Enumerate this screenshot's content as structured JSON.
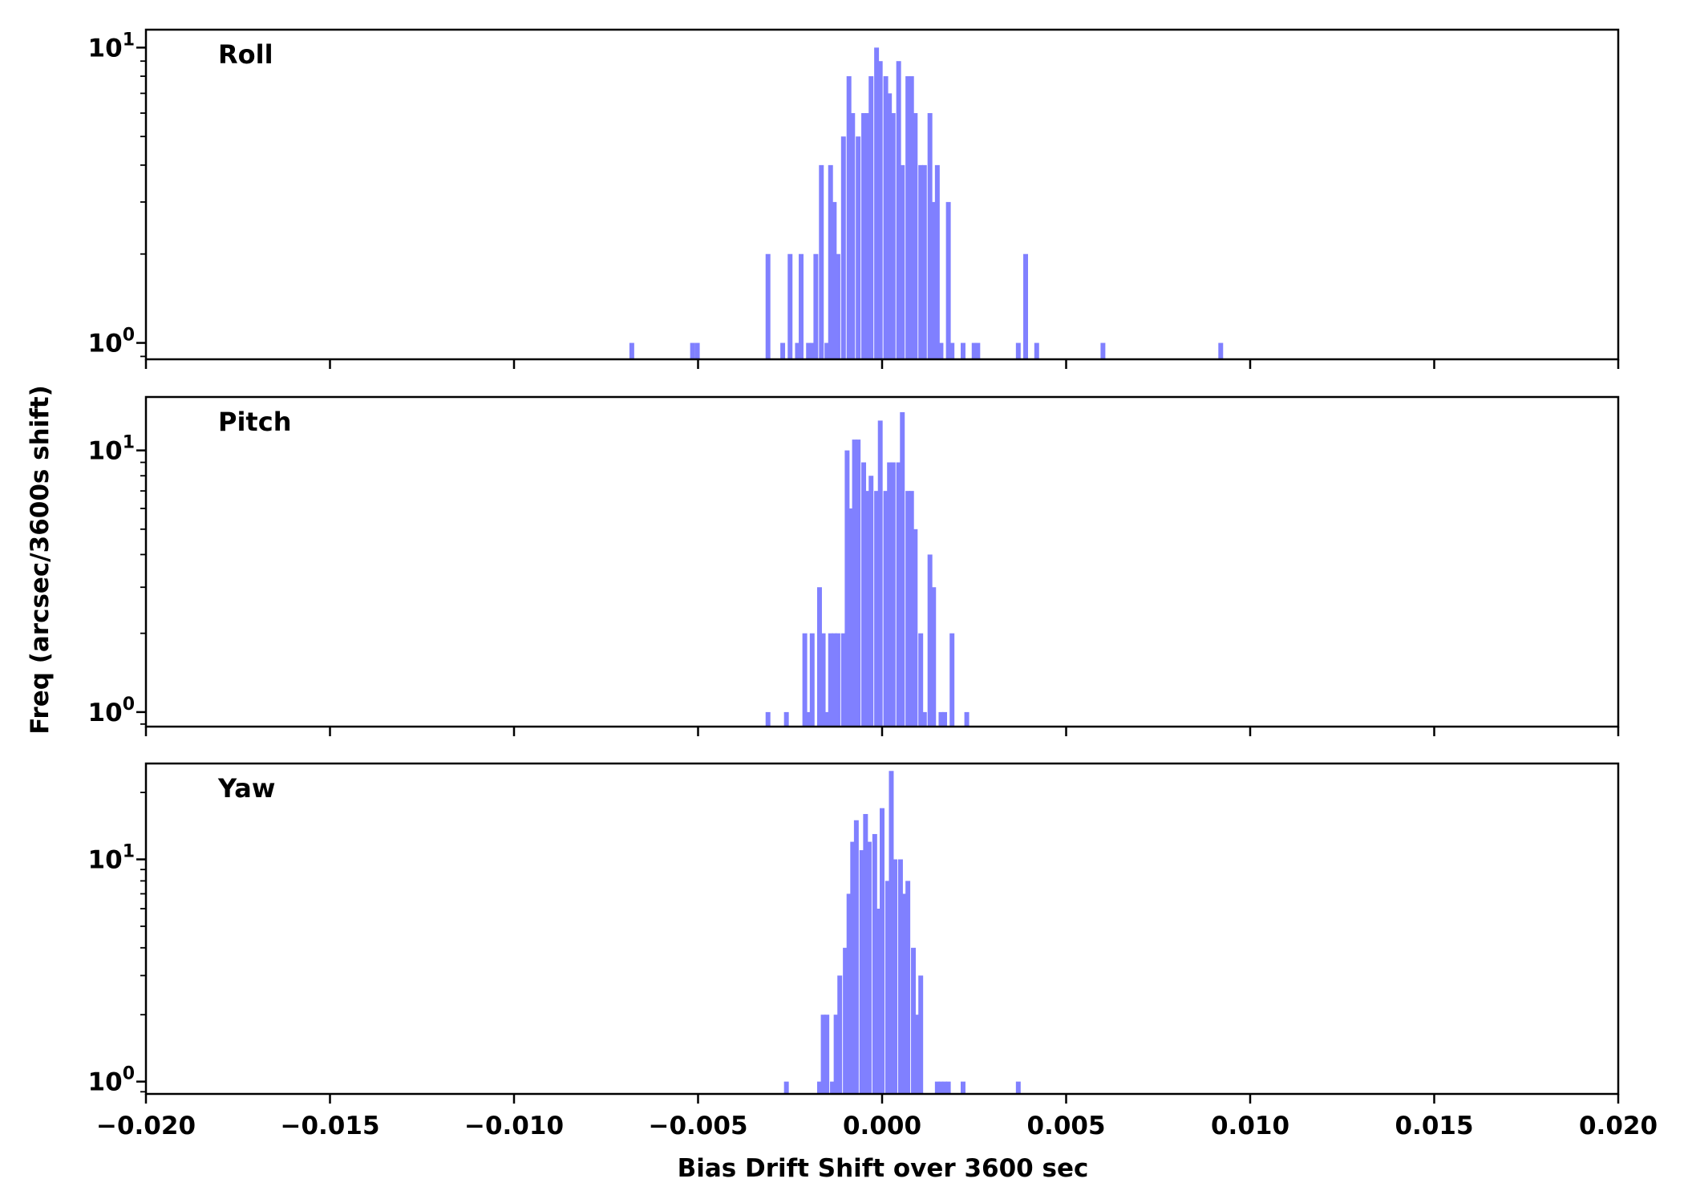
{
  "chart_data": {
    "type": "histogram",
    "xlabel": "Bias Drift Shift over 3600 sec",
    "ylabel": "Freq (arcsec/3600s shift)",
    "xlim": [
      -0.02,
      0.02
    ],
    "xticks": [
      -0.02,
      -0.015,
      -0.01,
      -0.005,
      0.0,
      0.005,
      0.01,
      0.015,
      0.02
    ],
    "xtick_labels": [
      "−0.020",
      "−0.015",
      "−0.010",
      "−0.005",
      "0.000",
      "0.005",
      "0.010",
      "0.015",
      "0.020"
    ],
    "yscale": "log",
    "bin_width": 0.00013,
    "bar_color": "#8080ff",
    "panels": [
      {
        "label": "Roll",
        "ylim": [
          0.88,
          11.5
        ],
        "yticks": [
          {
            "value": 1,
            "base": "10",
            "exp": "0"
          },
          {
            "value": 10,
            "base": "10",
            "exp": "1"
          }
        ],
        "bins": [
          {
            "x": -0.0068,
            "count": 1
          },
          {
            "x": -0.00515,
            "count": 1
          },
          {
            "x": -0.00502,
            "count": 1
          },
          {
            "x": -0.0031,
            "count": 2
          },
          {
            "x": -0.0027,
            "count": 1
          },
          {
            "x": -0.0025,
            "count": 2
          },
          {
            "x": -0.0023,
            "count": 1
          },
          {
            "x": -0.0022,
            "count": 2
          },
          {
            "x": -0.002,
            "count": 1
          },
          {
            "x": -0.0019,
            "count": 1
          },
          {
            "x": -0.0018,
            "count": 2
          },
          {
            "x": -0.00165,
            "count": 4
          },
          {
            "x": -0.0015,
            "count": 1
          },
          {
            "x": -0.0014,
            "count": 4
          },
          {
            "x": -0.0013,
            "count": 3
          },
          {
            "x": -0.0012,
            "count": 2
          },
          {
            "x": -0.00105,
            "count": 5
          },
          {
            "x": -0.0009,
            "count": 8
          },
          {
            "x": -0.0008,
            "count": 6
          },
          {
            "x": -0.00065,
            "count": 5
          },
          {
            "x": -0.0005,
            "count": 6
          },
          {
            "x": -0.0004,
            "count": 6
          },
          {
            "x": -0.0003,
            "count": 8
          },
          {
            "x": -0.00015,
            "count": 10
          },
          {
            "x": -5e-05,
            "count": 9
          },
          {
            "x": 0.0001,
            "count": 8
          },
          {
            "x": 0.0002,
            "count": 7
          },
          {
            "x": 0.0003,
            "count": 6
          },
          {
            "x": 0.00045,
            "count": 9
          },
          {
            "x": 0.00055,
            "count": 4
          },
          {
            "x": 0.0007,
            "count": 8
          },
          {
            "x": 0.0008,
            "count": 8
          },
          {
            "x": 0.0009,
            "count": 6
          },
          {
            "x": 0.00105,
            "count": 4
          },
          {
            "x": 0.00115,
            "count": 4
          },
          {
            "x": 0.0013,
            "count": 6
          },
          {
            "x": 0.0014,
            "count": 3
          },
          {
            "x": 0.0015,
            "count": 4
          },
          {
            "x": 0.0016,
            "count": 1
          },
          {
            "x": 0.0018,
            "count": 3
          },
          {
            "x": 0.0019,
            "count": 1
          },
          {
            "x": 0.0022,
            "count": 1
          },
          {
            "x": 0.0025,
            "count": 1
          },
          {
            "x": 0.0026,
            "count": 1
          },
          {
            "x": 0.0037,
            "count": 1
          },
          {
            "x": 0.0039,
            "count": 2
          },
          {
            "x": 0.0042,
            "count": 1
          },
          {
            "x": 0.006,
            "count": 1
          },
          {
            "x": 0.0092,
            "count": 1
          }
        ]
      },
      {
        "label": "Pitch",
        "ylim": [
          0.88,
          16
        ],
        "yticks": [
          {
            "value": 1,
            "base": "10",
            "exp": "0"
          },
          {
            "value": 10,
            "base": "10",
            "exp": "1"
          }
        ],
        "bins": [
          {
            "x": -0.0031,
            "count": 1
          },
          {
            "x": -0.0026,
            "count": 1
          },
          {
            "x": -0.0021,
            "count": 2
          },
          {
            "x": -0.002,
            "count": 1
          },
          {
            "x": -0.0019,
            "count": 2
          },
          {
            "x": -0.0017,
            "count": 3
          },
          {
            "x": -0.0016,
            "count": 2
          },
          {
            "x": -0.0015,
            "count": 1
          },
          {
            "x": -0.0014,
            "count": 2
          },
          {
            "x": -0.0013,
            "count": 2
          },
          {
            "x": -0.0012,
            "count": 2
          },
          {
            "x": -0.00105,
            "count": 2
          },
          {
            "x": -0.00095,
            "count": 10
          },
          {
            "x": -0.00085,
            "count": 6
          },
          {
            "x": -0.00075,
            "count": 11
          },
          {
            "x": -0.00065,
            "count": 11
          },
          {
            "x": -0.0005,
            "count": 9
          },
          {
            "x": -0.0004,
            "count": 7
          },
          {
            "x": -0.0003,
            "count": 8
          },
          {
            "x": -0.00015,
            "count": 7
          },
          {
            "x": -5e-05,
            "count": 13
          },
          {
            "x": 0.0001,
            "count": 7
          },
          {
            "x": 0.0002,
            "count": 9
          },
          {
            "x": 0.0003,
            "count": 9
          },
          {
            "x": 0.00045,
            "count": 9
          },
          {
            "x": 0.00055,
            "count": 14
          },
          {
            "x": 0.0007,
            "count": 7
          },
          {
            "x": 0.0008,
            "count": 7
          },
          {
            "x": 0.0009,
            "count": 5
          },
          {
            "x": 0.00105,
            "count": 2
          },
          {
            "x": 0.00115,
            "count": 1
          },
          {
            "x": 0.0013,
            "count": 4
          },
          {
            "x": 0.0014,
            "count": 3
          },
          {
            "x": 0.0016,
            "count": 1
          },
          {
            "x": 0.0017,
            "count": 1
          },
          {
            "x": 0.0019,
            "count": 2
          },
          {
            "x": 0.0023,
            "count": 1
          }
        ]
      },
      {
        "label": "Yaw",
        "ylim": [
          0.88,
          27
        ],
        "yticks": [
          {
            "value": 1,
            "base": "10",
            "exp": "0"
          },
          {
            "value": 10,
            "base": "10",
            "exp": "1"
          }
        ],
        "bins": [
          {
            "x": -0.0026,
            "count": 1
          },
          {
            "x": -0.0017,
            "count": 1
          },
          {
            "x": -0.0016,
            "count": 2
          },
          {
            "x": -0.0015,
            "count": 2
          },
          {
            "x": -0.00135,
            "count": 1
          },
          {
            "x": -0.00125,
            "count": 2
          },
          {
            "x": -0.00115,
            "count": 3
          },
          {
            "x": -0.001,
            "count": 4
          },
          {
            "x": -0.0009,
            "count": 7
          },
          {
            "x": -0.0008,
            "count": 12
          },
          {
            "x": -0.0007,
            "count": 15
          },
          {
            "x": -0.00055,
            "count": 11
          },
          {
            "x": -0.00045,
            "count": 16
          },
          {
            "x": -0.00035,
            "count": 12
          },
          {
            "x": -0.0002,
            "count": 13
          },
          {
            "x": -0.0001,
            "count": 6
          },
          {
            "x": 0.0,
            "count": 17
          },
          {
            "x": 0.00015,
            "count": 8
          },
          {
            "x": 0.00025,
            "count": 25
          },
          {
            "x": 0.00035,
            "count": 10
          },
          {
            "x": 0.0005,
            "count": 10
          },
          {
            "x": 0.0006,
            "count": 7
          },
          {
            "x": 0.0007,
            "count": 8
          },
          {
            "x": 0.00085,
            "count": 4
          },
          {
            "x": 0.00095,
            "count": 2
          },
          {
            "x": 0.00105,
            "count": 3
          },
          {
            "x": 0.0015,
            "count": 1
          },
          {
            "x": 0.0016,
            "count": 1
          },
          {
            "x": 0.0017,
            "count": 1
          },
          {
            "x": 0.0018,
            "count": 1
          },
          {
            "x": 0.0022,
            "count": 1
          },
          {
            "x": 0.0037,
            "count": 1
          }
        ]
      }
    ]
  }
}
